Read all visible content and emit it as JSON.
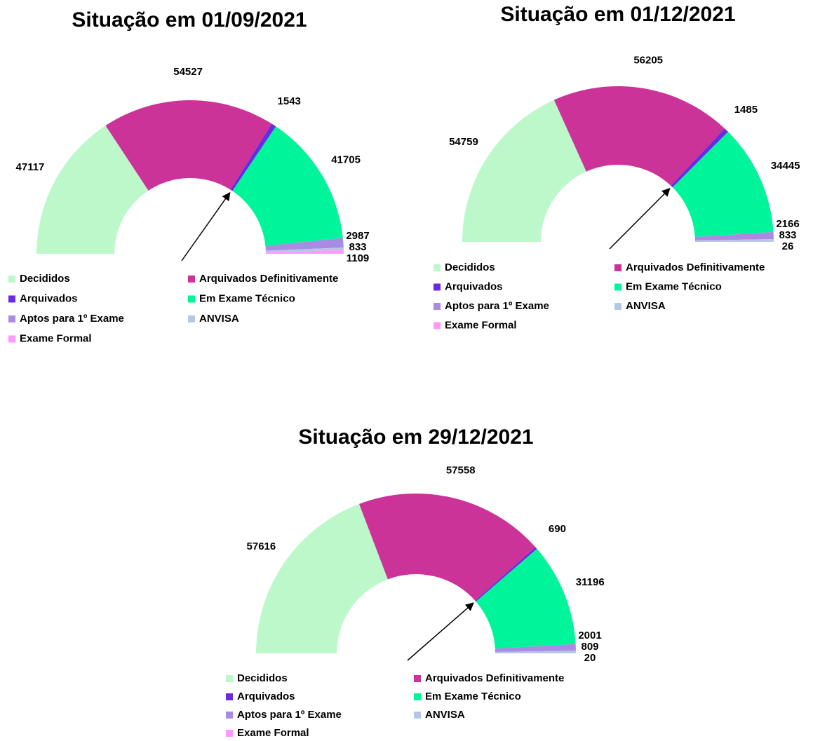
{
  "chart_data": [
    {
      "type": "half-donut",
      "title": "Situação em 01/09/2021",
      "categories": [
        "Decididos",
        "Arquivados Definitivamente",
        "Arquivados",
        "Em Exame Técnico",
        "Aptos para 1º Exame",
        "ANVISA",
        "Exame Formal"
      ],
      "values": [
        47117,
        54527,
        1543,
        41705,
        2987,
        833,
        1109
      ],
      "colors": [
        "#bdf8cb",
        "#cc3399",
        "#6a2be0",
        "#00f59b",
        "#a98be3",
        "#b4c7e7",
        "#ff99ff"
      ]
    },
    {
      "type": "half-donut",
      "title": "Situação em 01/12/2021",
      "categories": [
        "Decididos",
        "Arquivados Definitivamente",
        "Arquivados",
        "Em Exame Técnico",
        "Aptos para 1º Exame",
        "ANVISA",
        "Exame Formal"
      ],
      "values": [
        54759,
        56205,
        1485,
        34445,
        2166,
        833,
        26
      ],
      "colors": [
        "#bdf8cb",
        "#cc3399",
        "#6a2be0",
        "#00f59b",
        "#a98be3",
        "#b4c7e7",
        "#ff99ff"
      ]
    },
    {
      "type": "half-donut",
      "title": "Situação em 29/12/2021",
      "categories": [
        "Decididos",
        "Arquivados Definitivamente",
        "Arquivados",
        "Em Exame Técnico",
        "Aptos para 1º Exame",
        "ANVISA",
        "Exame Formal"
      ],
      "values": [
        57616,
        57558,
        690,
        31196,
        2001,
        809,
        20
      ],
      "colors": [
        "#bdf8cb",
        "#cc3399",
        "#6a2be0",
        "#00f59b",
        "#a98be3",
        "#b4c7e7",
        "#ff99ff"
      ]
    }
  ]
}
